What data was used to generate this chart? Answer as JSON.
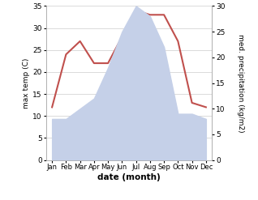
{
  "months": [
    "Jan",
    "Feb",
    "Mar",
    "Apr",
    "May",
    "Jun",
    "Jul",
    "Aug",
    "Sep",
    "Oct",
    "Nov",
    "Dec"
  ],
  "month_indices": [
    0,
    1,
    2,
    3,
    4,
    5,
    6,
    7,
    8,
    9,
    10,
    11
  ],
  "max_temp": [
    12,
    24,
    27,
    22,
    22,
    28,
    34,
    33,
    33,
    27,
    13,
    12
  ],
  "precipitation": [
    8,
    8,
    10,
    12,
    18,
    25,
    30,
    28,
    22,
    9,
    9,
    8
  ],
  "temp_color": "#c0504d",
  "precip_fill_color": "#c5d0e8",
  "left_ylim": [
    0,
    35
  ],
  "right_ylim": [
    0,
    30
  ],
  "left_yticks": [
    0,
    5,
    10,
    15,
    20,
    25,
    30,
    35
  ],
  "right_yticks": [
    0,
    5,
    10,
    15,
    20,
    25,
    30
  ],
  "xlabel": "date (month)",
  "ylabel_left": "max temp (C)",
  "ylabel_right": "med. precipitation (kg/m2)",
  "background_color": "#ffffff"
}
